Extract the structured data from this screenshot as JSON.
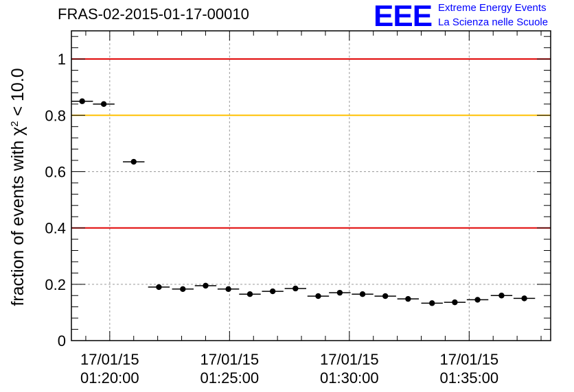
{
  "title": "FRAS-02-2015-01-17-00010",
  "logo": {
    "mark": "EEE",
    "line1": "Extreme Energy Events",
    "line2": "La Scienza nelle Scuole",
    "color": "#0000ff"
  },
  "chart_data": {
    "type": "scatter",
    "title": "FRAS-02-2015-01-17-00010",
    "ylabel_prefix": "fraction of events with ",
    "ylabel_chi": "χ",
    "ylabel_sup": "2",
    "ylabel_suffix": " < 10.0",
    "ylim": [
      0,
      1.1
    ],
    "yticks": [
      {
        "value": 0,
        "label": "0"
      },
      {
        "value": 0.2,
        "label": "0.2"
      },
      {
        "value": 0.4,
        "label": "0.4"
      },
      {
        "value": 0.6,
        "label": "0.6"
      },
      {
        "value": 0.8,
        "label": "0.8"
      },
      {
        "value": 1,
        "label": "1"
      }
    ],
    "xlim_minutes": [
      78.4,
      98.4
    ],
    "xticks": [
      {
        "minute": 80,
        "date": "17/01/15",
        "time": "01:20:00"
      },
      {
        "minute": 85,
        "date": "17/01/15",
        "time": "01:25:00"
      },
      {
        "minute": 90,
        "date": "17/01/15",
        "time": "01:30:00"
      },
      {
        "minute": 95,
        "date": "17/01/15",
        "time": "01:35:00"
      }
    ],
    "grid": true,
    "reference_lines": [
      {
        "y": 1.0,
        "color": "#e00000"
      },
      {
        "y": 0.8,
        "color": "#ffc000"
      },
      {
        "y": 0.4,
        "color": "#e00000"
      }
    ],
    "bin_width_minutes": 0.9,
    "points": [
      {
        "x": 78.85,
        "y": 0.85
      },
      {
        "x": 79.75,
        "y": 0.84
      },
      {
        "x": 81.0,
        "y": 0.635
      },
      {
        "x": 82.05,
        "y": 0.19
      },
      {
        "x": 83.05,
        "y": 0.183
      },
      {
        "x": 84.0,
        "y": 0.195
      },
      {
        "x": 84.95,
        "y": 0.183
      },
      {
        "x": 85.85,
        "y": 0.165
      },
      {
        "x": 86.8,
        "y": 0.175
      },
      {
        "x": 87.75,
        "y": 0.185
      },
      {
        "x": 88.7,
        "y": 0.158
      },
      {
        "x": 89.6,
        "y": 0.17
      },
      {
        "x": 90.55,
        "y": 0.165
      },
      {
        "x": 91.5,
        "y": 0.158
      },
      {
        "x": 92.45,
        "y": 0.148
      },
      {
        "x": 93.45,
        "y": 0.133
      },
      {
        "x": 94.4,
        "y": 0.136
      },
      {
        "x": 95.35,
        "y": 0.145
      },
      {
        "x": 96.35,
        "y": 0.16
      },
      {
        "x": 97.3,
        "y": 0.15
      }
    ]
  }
}
